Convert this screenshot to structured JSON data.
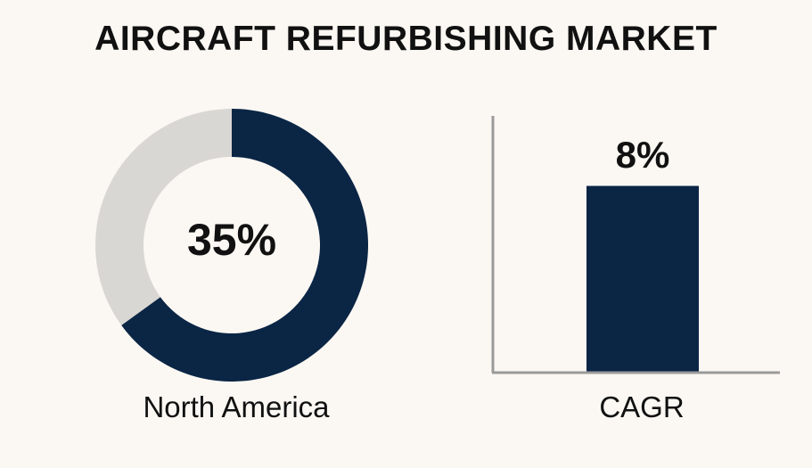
{
  "title": "AIRCRAFT REFURBISHING MARKET",
  "colors": {
    "primary": "#0b2545",
    "remainder": "#d9d7d3",
    "axis": "#9a9a9a",
    "background": "#fbf8f3"
  },
  "chart_data": [
    {
      "type": "pie",
      "variant": "donut",
      "center_label": "35%",
      "label": "North America",
      "slices": [
        {
          "value": 65
        },
        {
          "value": 35
        }
      ]
    },
    {
      "type": "bar",
      "categories": [
        "CAGR"
      ],
      "values": [
        8
      ],
      "data_label": "8%",
      "ylim": [
        0,
        11
      ],
      "grid": false
    }
  ]
}
